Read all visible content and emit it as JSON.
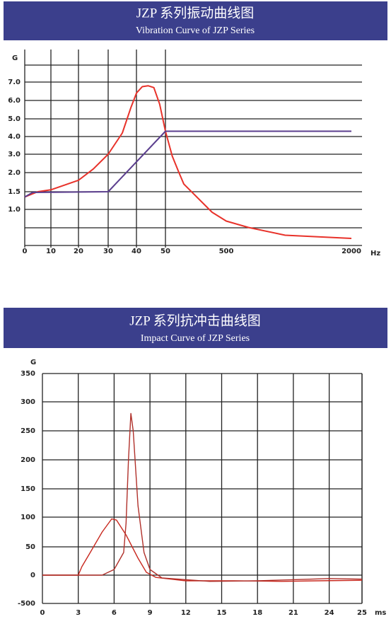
{
  "chart_data": [
    {
      "type": "line",
      "title": "JZP 系列振动曲线图",
      "subtitle": "Vibration Curve of JZP Series",
      "y_label": "G",
      "x_unit": "Hz",
      "xticks": [
        0,
        10,
        20,
        30,
        40,
        50,
        500,
        2000
      ],
      "yticks": [
        {
          "value": 1,
          "label": "1.0"
        },
        1.5,
        {
          "value": 2,
          "label": "2.0"
        },
        {
          "value": 3,
          "label": "3.0"
        },
        {
          "value": 4,
          "label": "4.0"
        },
        {
          "value": 5,
          "label": "5.0"
        },
        {
          "value": 6,
          "label": "6.0"
        },
        {
          "value": 7,
          "label": "7.0"
        }
      ],
      "grid": true,
      "series": [
        {
          "color": "#e8322a",
          "x": [
            0,
            5,
            10,
            20,
            25,
            30,
            35,
            38,
            40,
            42,
            44,
            46,
            48,
            50,
            100,
            150,
            186,
            395,
            500,
            765,
            1206,
            2000
          ],
          "values": [
            1.35,
            1.5,
            1.55,
            1.8,
            2.2,
            3.0,
            4.2,
            5.6,
            6.4,
            6.75,
            6.8,
            6.7,
            5.8,
            4.3,
            2.9,
            2.0,
            1.7,
            0.92,
            0.67,
            0.49,
            0.27,
            0.18
          ]
        },
        {
          "color": "#5b3e8e",
          "x": [
            0,
            3,
            30,
            50,
            2000
          ],
          "values": [
            1.35,
            1.48,
            1.5,
            4.3,
            4.3
          ]
        }
      ]
    },
    {
      "type": "line",
      "title": "JZP 系列抗冲击曲线图",
      "subtitle": "Impact Curve of JZP Series",
      "y_label": "G",
      "x_unit": "ms",
      "xticks": [
        0,
        3,
        6,
        9,
        12,
        15,
        18,
        21,
        24,
        25
      ],
      "yticks": [
        -500,
        0,
        50,
        100,
        150,
        200,
        250,
        300,
        350
      ],
      "grid": true,
      "series": [
        {
          "color": "#c8281e",
          "x": [
            0,
            3,
            3.3,
            4,
            5,
            5.8,
            6.2,
            7,
            8,
            8.7,
            9.5,
            12,
            16,
            20,
            23,
            25
          ],
          "values": [
            0,
            0,
            15,
            40,
            75,
            97,
            95,
            70,
            30,
            5,
            -40,
            -100,
            -100,
            -110,
            -100,
            -90
          ]
        },
        {
          "color": "#b0302a",
          "x": [
            0,
            5,
            6,
            6.8,
            7,
            7.2,
            7.4,
            7.6,
            8,
            8.5,
            9,
            10,
            14,
            18,
            21,
            24,
            25
          ],
          "values": [
            0,
            0,
            10,
            40,
            90,
            200,
            280,
            250,
            120,
            40,
            10,
            -50,
            -110,
            -100,
            -80,
            -60,
            -70
          ]
        }
      ]
    }
  ]
}
